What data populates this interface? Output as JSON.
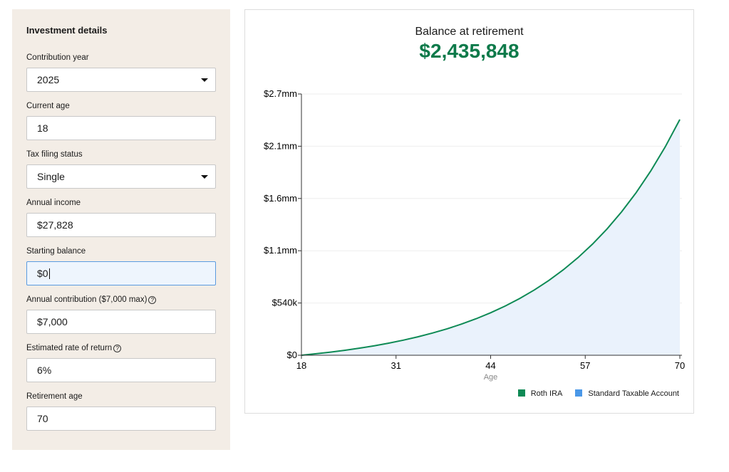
{
  "form": {
    "heading": "Investment details",
    "fields": [
      {
        "label": "Contribution year",
        "value": "2025",
        "type": "select"
      },
      {
        "label": "Current age",
        "value": "18",
        "type": "input"
      },
      {
        "label": "Tax filing status",
        "value": "Single",
        "type": "select"
      },
      {
        "label": "Annual income",
        "value": "$27,828",
        "type": "input"
      },
      {
        "label": "Starting balance",
        "value": "$0",
        "type": "input",
        "focused": true
      },
      {
        "label": "Annual contribution ($7,000 max)",
        "value": "$7,000",
        "type": "input",
        "help": "?"
      },
      {
        "label": "Estimated rate of return",
        "value": "6%",
        "type": "input",
        "help": "?"
      },
      {
        "label": "Retirement age",
        "value": "70",
        "type": "input"
      }
    ]
  },
  "summary": {
    "title": "Balance at retirement",
    "value": "$2,435,848"
  },
  "chart_data": {
    "type": "area",
    "xlabel": "Age",
    "x_ticks": [
      "18",
      "31",
      "44",
      "57",
      "70"
    ],
    "y_ticks": [
      "$0",
      "$540k",
      "$1.1mm",
      "$1.6mm",
      "$2.1mm",
      "$2.7mm"
    ],
    "xlim": [
      18,
      70
    ],
    "ylim": [
      0,
      2700000
    ],
    "grid": true,
    "legend_position": "bottom-right",
    "series": [
      {
        "name": "Roth IRA",
        "color": "#0e8a55",
        "x": [
          18,
          20,
          22,
          24,
          26,
          28,
          30,
          32,
          34,
          36,
          38,
          40,
          42,
          44,
          46,
          48,
          50,
          52,
          54,
          56,
          58,
          60,
          62,
          64,
          66,
          68,
          70
        ],
        "values": [
          0,
          15285,
          32460,
          51757,
          73439,
          97802,
          125175,
          155931,
          190490,
          229320,
          272949,
          321969,
          377051,
          438940,
          508478,
          586610,
          674402,
          773045,
          883878,
          1008408,
          1148334,
          1305549,
          1482204,
          1680689,
          1903712,
          2154300,
          2435848
        ]
      },
      {
        "name": "Standard Taxable Account",
        "color": "#4a98e8"
      }
    ]
  }
}
